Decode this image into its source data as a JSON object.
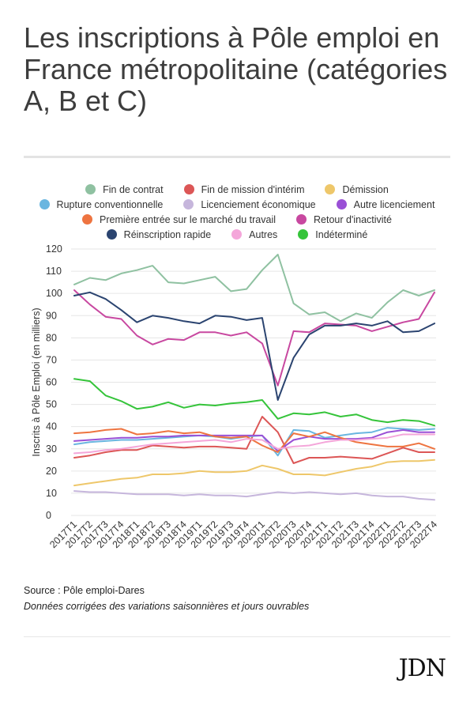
{
  "title": "Les inscriptions à Pôle emploi en France métropolitaine (catégories A, B et C)",
  "source": "Source : Pôle emploi-Dares",
  "note": "Données corrigées des variations saisonnières et jours ouvrables",
  "brand": "JDN",
  "chart_data": {
    "type": "line",
    "ylabel": "Inscrits à Pôle Emploi (en milliers)",
    "xlabel": "",
    "ylim": [
      0,
      120
    ],
    "yticks": [
      0,
      10,
      20,
      30,
      40,
      50,
      60,
      70,
      80,
      90,
      100,
      110,
      120
    ],
    "grid": true,
    "legend_position": "top",
    "categories": [
      "2017T1",
      "2017T2",
      "2017T3",
      "2017T4",
      "2018T1",
      "2018T2",
      "2018T3",
      "2018T4",
      "2019T1",
      "2019T2",
      "2019T3",
      "2019T4",
      "2020T1",
      "2020T2",
      "2020T3",
      "2020T4",
      "2021T1",
      "2021T2",
      "2021T3",
      "2021T4",
      "2022T1",
      "2022T2",
      "2022T3",
      "2022T4"
    ],
    "series": [
      {
        "name": "Fin de contrat",
        "color": "#8fc1a1",
        "values": [
          104,
          107,
          106,
          109,
          110.5,
          112.5,
          105,
          104.5,
          106,
          107.5,
          101,
          102,
          110.5,
          117.5,
          95.5,
          90.5,
          91.5,
          87.5,
          91,
          89,
          96,
          101.5,
          99,
          101.5
        ]
      },
      {
        "name": "Fin de mission d'intérim",
        "color": "#dc5656",
        "values": [
          26,
          27,
          28.5,
          29.5,
          29.5,
          31.5,
          31,
          30.5,
          31,
          31,
          30.5,
          30,
          44.5,
          37.5,
          23.5,
          26,
          26,
          26.5,
          26,
          25.5,
          28,
          30.5,
          28.5,
          28.5
        ]
      },
      {
        "name": "Démission",
        "color": "#eec76a",
        "values": [
          13.5,
          14.5,
          15.5,
          16.5,
          17,
          18.5,
          18.5,
          19,
          20,
          19.5,
          19.5,
          20,
          22.5,
          21,
          18.5,
          18.5,
          18,
          19.5,
          21,
          22,
          24,
          24.5,
          24.5,
          25
        ]
      },
      {
        "name": "Rupture conventionnelle",
        "color": "#6ab6e0",
        "values": [
          32,
          33,
          33.5,
          34,
          34,
          34.5,
          35,
          35.5,
          36,
          35.5,
          34.5,
          35.5,
          36,
          27,
          38.5,
          38,
          35,
          36,
          37,
          37.5,
          39.5,
          39,
          38.5,
          39
        ]
      },
      {
        "name": "Licenciement économique",
        "color": "#c6b6dc",
        "values": [
          11,
          10.5,
          10.5,
          10,
          9.5,
          9.5,
          9.5,
          9,
          9.5,
          9,
          9,
          8.5,
          9.5,
          10.5,
          10,
          10.5,
          10,
          9.5,
          10,
          9,
          8.5,
          8.5,
          7.5,
          7
        ]
      },
      {
        "name": "Autre licenciement",
        "color": "#9a50d6",
        "values": [
          33.5,
          34,
          34.5,
          35,
          35,
          35.5,
          35.5,
          36,
          36,
          36,
          36,
          36,
          36,
          29,
          34,
          35.5,
          34.5,
          34.5,
          34.5,
          35,
          37.5,
          38.5,
          37.5,
          37.5
        ]
      },
      {
        "name": "Première entrée sur le marché du travail",
        "color": "#ee7440",
        "values": [
          37,
          37.5,
          38.5,
          39,
          36.5,
          37,
          38,
          37,
          37.5,
          35.5,
          35,
          35.5,
          31.5,
          28.5,
          37,
          35.5,
          37.5,
          35,
          33,
          32,
          31,
          31,
          32.5,
          30
        ]
      },
      {
        "name": "Retour d'inactivité",
        "color": "#c848a0",
        "values": [
          101.5,
          95,
          89.5,
          88.5,
          81,
          77,
          79.5,
          79,
          82.5,
          82.5,
          81,
          82.5,
          77.5,
          58.5,
          83,
          82.5,
          86.5,
          86,
          85.5,
          83,
          85,
          87,
          88.5,
          100.5
        ]
      },
      {
        "name": "Réinscription rapide",
        "color": "#2b4470",
        "values": [
          99,
          100.5,
          97.5,
          92.5,
          87,
          90,
          89,
          87.5,
          86.5,
          90,
          89.5,
          88,
          89,
          52,
          71,
          81.5,
          85.5,
          85.5,
          86.5,
          85.5,
          87.5,
          82.5,
          83,
          86.5
        ]
      },
      {
        "name": "Autres",
        "color": "#f4a6da",
        "values": [
          28,
          28.5,
          29.5,
          30,
          31,
          32,
          32.5,
          33,
          33.5,
          34,
          33,
          34.5,
          34,
          30,
          31,
          31.5,
          33,
          34,
          34,
          34.5,
          35,
          36.5,
          36.5,
          36.5
        ]
      },
      {
        "name": "Indéterminé",
        "color": "#35c43a",
        "values": [
          61.5,
          60.5,
          54,
          51.5,
          48,
          49,
          51,
          48.5,
          50,
          49.5,
          50.5,
          51,
          52,
          43.5,
          46,
          45.5,
          46.5,
          44.5,
          45.5,
          43,
          42,
          43,
          42.5,
          40.5
        ]
      }
    ]
  }
}
